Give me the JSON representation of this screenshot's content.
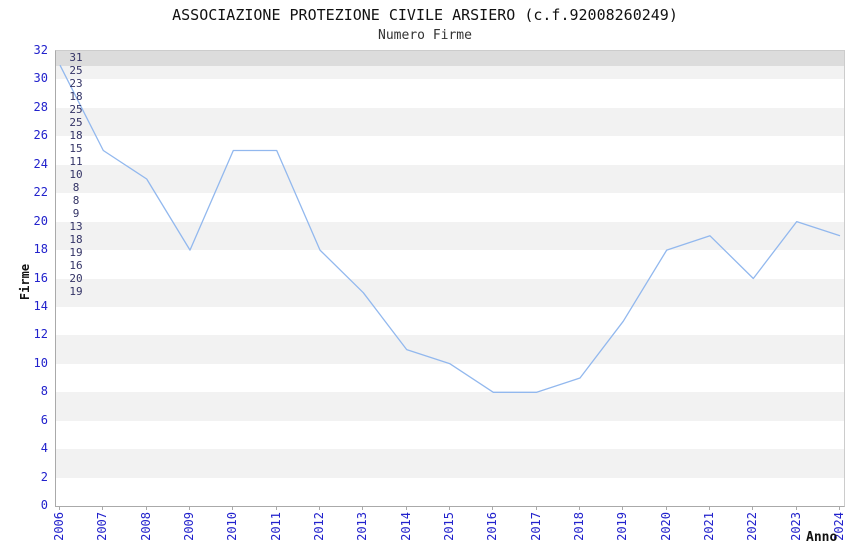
{
  "title": "ASSOCIAZIONE PROTEZIONE CIVILE ARSIERO (c.f.92008260249)",
  "subtitle": "Numero Firme",
  "axis": {
    "xlabel": "Anno",
    "ylabel": "Firme"
  },
  "chart_data": {
    "type": "line",
    "title": "ASSOCIAZIONE PROTEZIONE CIVILE ARSIERO (c.f.92008260249)",
    "subtitle": "Numero Firme",
    "xlabel": "Anno",
    "ylabel": "Firme",
    "x": [
      "2006",
      "2007",
      "2008",
      "2009",
      "2010",
      "2011",
      "2012",
      "2013",
      "2014",
      "2015",
      "2016",
      "2017",
      "2018",
      "2019",
      "2020",
      "2021",
      "2022",
      "2023",
      "2024"
    ],
    "series": [
      {
        "name": "Numero Firme",
        "values": [
          31,
          25,
          23,
          18,
          25,
          25,
          18,
          15,
          11,
          10,
          8,
          8,
          9,
          13,
          18,
          19,
          16,
          20,
          19
        ]
      }
    ],
    "ylim": [
      0,
      32
    ],
    "ytick_step": 2,
    "show_value_labels": true,
    "grid": "alternating horizontal bands every 2 units",
    "legend_position": "none",
    "colors": {
      "line": "#92b8ee",
      "tick_labels": "#2222cc",
      "value_labels": "#333366",
      "band_gray": "#f2f2f2",
      "gridline": "#dcdcdc",
      "plot_border": "#cccccc",
      "axis_line": "#aaaaaa",
      "title": "#111111",
      "subtitle": "#333333"
    }
  }
}
